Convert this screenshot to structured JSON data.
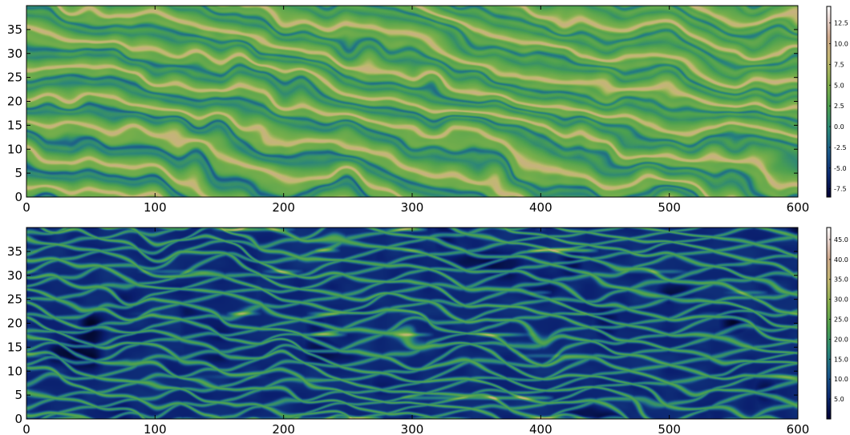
{
  "chart_data": [
    {
      "type": "heatmap",
      "title": "",
      "xlabel": "",
      "ylabel": "",
      "xlim": [
        0,
        600
      ],
      "ylim": [
        0,
        40
      ],
      "x_ticks": [
        "0",
        "100",
        "200",
        "300",
        "400",
        "500",
        "600"
      ],
      "y_ticks": [
        "0",
        "5",
        "10",
        "15",
        "20",
        "25",
        "30",
        "35"
      ],
      "colorbar": {
        "range": [
          -8.5,
          14.5
        ],
        "ticks": [
          "-7.5",
          "-5.0",
          "-2.5",
          "0.0",
          "2.5",
          "5.0",
          "7.5",
          "10.0",
          "12.5"
        ]
      },
      "pattern": "diagonal stripes, mostly green/yellow on dark blue",
      "colormap": "gist_earth-like"
    },
    {
      "type": "heatmap",
      "title": "",
      "xlabel": "",
      "ylabel": "",
      "xlim": [
        0,
        600
      ],
      "ylim": [
        0,
        40
      ],
      "x_ticks": [
        "0",
        "100",
        "200",
        "300",
        "400",
        "500",
        "600"
      ],
      "y_ticks": [
        "0",
        "5",
        "10",
        "15",
        "20",
        "25",
        "30",
        "35"
      ],
      "colorbar": {
        "range": [
          0,
          48
        ],
        "ticks": [
          "5.0",
          "10.0",
          "15.0",
          "20.0",
          "25.0",
          "30.0",
          "35.0",
          "40.0",
          "45.0"
        ]
      },
      "pattern": "network of thin green lines over dark blue with bright horizontal streaks",
      "colormap": "gist_earth-like"
    }
  ]
}
